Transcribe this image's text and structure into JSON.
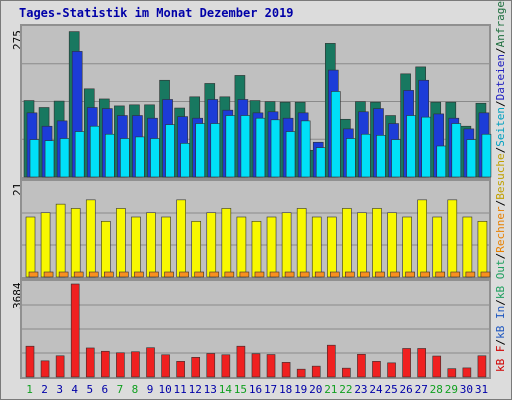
{
  "title": "Tages-Statistik im Monat Dezember 2019",
  "chart_data": {
    "type": "bar",
    "categories": [
      "1",
      "2",
      "3",
      "4",
      "5",
      "6",
      "7",
      "8",
      "9",
      "10",
      "11",
      "12",
      "13",
      "14",
      "15",
      "16",
      "17",
      "18",
      "19",
      "20",
      "21",
      "22",
      "23",
      "24",
      "25",
      "26",
      "27",
      "28",
      "29",
      "30",
      "31"
    ],
    "weekend_days": [
      "1",
      "7",
      "8",
      "14",
      "15",
      "21",
      "22",
      "28",
      "29"
    ],
    "panels": [
      {
        "ymax_label": "275",
        "ymax": 275,
        "series": [
          {
            "name": "Anfragen",
            "color": "#187860",
            "values": [
              143,
              130,
              142,
              272,
              165,
              146,
              133,
              135,
              135,
              181,
              129,
              150,
              175,
              150,
              190,
              143,
              141,
              140,
              140,
              50,
              250,
              108,
              141,
              140,
              115,
              193,
              206,
              140,
              140,
              95,
              138
            ]
          },
          {
            "name": "Dateien",
            "color": "#1c3cd8",
            "values": [
              120,
              95,
              105,
              235,
              130,
              128,
              115,
              115,
              110,
              145,
              113,
              110,
              145,
              125,
              145,
              120,
              122,
              110,
              120,
              65,
              200,
              90,
              122,
              128,
              100,
              162,
              181,
              118,
              110,
              90,
              120
            ]
          },
          {
            "name": "Seiten",
            "color": "#00e0f8",
            "values": [
              70,
              68,
              72,
              85,
              95,
              80,
              72,
              75,
              72,
              98,
              63,
              100,
              100,
              115,
              115,
              110,
              107,
              85,
              105,
              55,
              160,
              72,
              80,
              78,
              70,
              115,
              112,
              58,
              100,
              70,
              80
            ]
          }
        ]
      },
      {
        "ymax_label": "21",
        "ymax": 21,
        "series": [
          {
            "name": "Besuche",
            "color": "#f8f800",
            "values": [
              14,
              15,
              17,
              16,
              18,
              13,
              16,
              14,
              15,
              14,
              18,
              13,
              15,
              16,
              14,
              13,
              14,
              15,
              16,
              14,
              14,
              16,
              15,
              16,
              15,
              14,
              18,
              14,
              18,
              14,
              13
            ]
          },
          {
            "name": "Rechner",
            "color": "#f89020",
            "values": [
              1,
              1,
              1,
              1,
              1,
              1,
              1,
              1,
              1,
              1,
              1,
              1,
              1,
              1,
              1,
              1,
              1,
              1,
              1,
              1,
              1,
              1,
              1,
              1,
              1,
              1,
              1,
              1,
              1,
              1,
              1
            ]
          }
        ]
      },
      {
        "ymax_label": "3684",
        "ymax": 3684,
        "series": [
          {
            "name": "kB F",
            "color": "#f02020",
            "values": [
              1220,
              640,
              840,
              3684,
              1150,
              1020,
              960,
              1000,
              1160,
              880,
              620,
              780,
              930,
              880,
              1220,
              920,
              890,
              580,
              310,
              430,
              1260,
              350,
              900,
              620,
              560,
              1130,
              1130,
              830,
              330,
              360,
              840
            ]
          }
        ]
      }
    ]
  },
  "legend": [
    {
      "text": "kB F",
      "color": "#d00000"
    },
    {
      "text": "/",
      "color": "#000000"
    },
    {
      "text": "kB In",
      "color": "#2058c0"
    },
    {
      "text": "/",
      "color": "#000000"
    },
    {
      "text": "kB Out",
      "color": "#20a060"
    },
    {
      "text": "/",
      "color": "#000000"
    },
    {
      "text": "Rechner",
      "color": "#e88000"
    },
    {
      "text": "/",
      "color": "#000000"
    },
    {
      "text": "Besuche",
      "color": "#c0a000"
    },
    {
      "text": "/",
      "color": "#000000"
    },
    {
      "text": "Seiten",
      "color": "#00a0c0"
    },
    {
      "text": "/",
      "color": "#000000"
    },
    {
      "text": "Dateien",
      "color": "#2020c0"
    },
    {
      "text": "/",
      "color": "#000000"
    },
    {
      "text": "Anfragen",
      "color": "#207040"
    }
  ],
  "colors": {
    "panel_bg": "#c0c0c0",
    "frame_bg": "#dcdcdc",
    "weekday_label": "#0000a8",
    "weekend_label": "#10a020"
  }
}
